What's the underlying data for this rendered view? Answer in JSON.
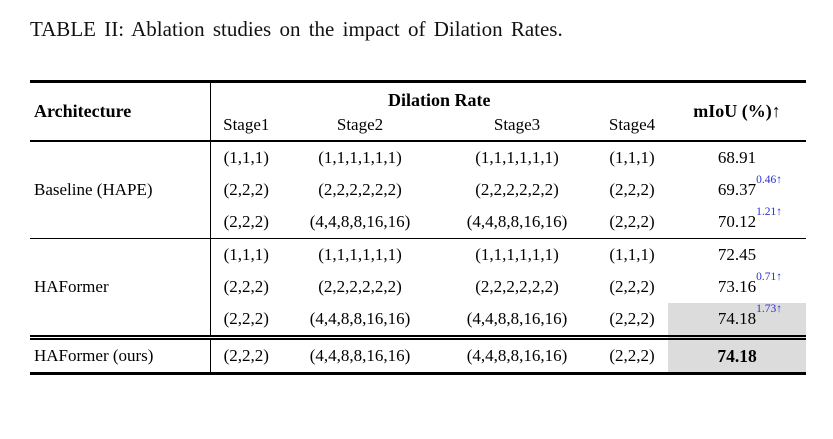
{
  "caption": "TABLE II: Ablation studies on the impact of Dilation Rates.",
  "colors": {
    "delta": "#2b32cc",
    "highlight": "#dcdcdc"
  },
  "table": {
    "header": {
      "architecture": "Architecture",
      "dilation_rate": "Dilation Rate",
      "stage1": "Stage1",
      "stage2": "Stage2",
      "stage3": "Stage3",
      "stage4": "Stage4",
      "miou": "mIoU (%)↑"
    },
    "groups": [
      {
        "name": "Baseline (HAPE)",
        "rows": [
          {
            "stage1": "(1,1,1)",
            "stage2": "(1,1,1,1,1,1)",
            "stage3": "(1,1,1,1,1,1)",
            "stage4": "(1,1,1)",
            "miou": "68.91",
            "delta": ""
          },
          {
            "stage1": "(2,2,2)",
            "stage2": "(2,2,2,2,2,2)",
            "stage3": "(2,2,2,2,2,2)",
            "stage4": "(2,2,2)",
            "miou": "69.37",
            "delta": "0.46↑"
          },
          {
            "stage1": "(2,2,2)",
            "stage2": "(4,4,8,8,16,16)",
            "stage3": "(4,4,8,8,16,16)",
            "stage4": "(2,2,2)",
            "miou": "70.12",
            "delta": "1.21↑"
          }
        ]
      },
      {
        "name": "HAFormer",
        "rows": [
          {
            "stage1": "(1,1,1)",
            "stage2": "(1,1,1,1,1,1)",
            "stage3": "(1,1,1,1,1,1)",
            "stage4": "(1,1,1)",
            "miou": "72.45",
            "delta": ""
          },
          {
            "stage1": "(2,2,2)",
            "stage2": "(2,2,2,2,2,2)",
            "stage3": "(2,2,2,2,2,2)",
            "stage4": "(2,2,2)",
            "miou": "73.16",
            "delta": "0.71↑"
          },
          {
            "stage1": "(2,2,2)",
            "stage2": "(4,4,8,8,16,16)",
            "stage3": "(4,4,8,8,16,16)",
            "stage4": "(2,2,2)",
            "miou": "74.18",
            "delta": "1.73↑"
          }
        ]
      }
    ],
    "final": {
      "name": "HAFormer (ours)",
      "stage1": "(2,2,2)",
      "stage2": "(4,4,8,8,16,16)",
      "stage3": "(4,4,8,8,16,16)",
      "stage4": "(2,2,2)",
      "miou": "74.18"
    }
  }
}
